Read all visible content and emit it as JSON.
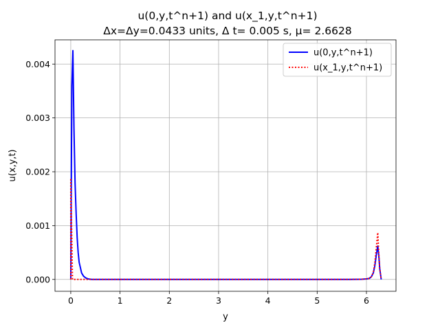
{
  "chart_data": {
    "type": "line",
    "title": "u(0,y,t^n+1) and u(x_1,y,t^n+1)",
    "subtitle": "Δx=Δy=0.0433 units, Δ t= 0.005 s, μ= 2.6628",
    "xlabel": "y",
    "ylabel": "u(x,y,t)",
    "xlim": [
      -0.32,
      6.6
    ],
    "ylim": [
      -0.00022,
      0.00445
    ],
    "xticks": [
      0,
      1,
      2,
      3,
      4,
      5,
      6
    ],
    "yticks": [
      0.0,
      0.001,
      0.002,
      0.003,
      0.004
    ],
    "ytick_labels": [
      "0.000",
      "0.001",
      "0.002",
      "0.003",
      "0.004"
    ],
    "grid": true,
    "legend_position": "top-right",
    "series": [
      {
        "name": "u(0,y,t^n+1)",
        "color": "#0000ff",
        "style": "solid",
        "x": [
          0.0,
          0.022,
          0.043,
          0.065,
          0.087,
          0.11,
          0.13,
          0.15,
          0.17,
          0.2,
          0.22,
          0.26,
          0.3,
          0.35,
          0.43,
          0.5,
          1.0,
          2.0,
          3.0,
          4.0,
          5.0,
          5.6,
          5.9,
          6.0,
          6.06,
          6.1,
          6.14,
          6.17,
          6.2,
          6.23,
          6.25,
          6.27,
          6.3
        ],
        "y": [
          0.0,
          0.0036,
          0.00425,
          0.0028,
          0.0018,
          0.0012,
          0.00078,
          0.0005,
          0.00032,
          0.0002,
          0.00012,
          6e-05,
          3e-05,
          1e-05,
          0.0,
          0.0,
          0.0,
          0.0,
          0.0,
          0.0,
          0.0,
          0.0,
          3e-06,
          1e-05,
          2e-05,
          5e-05,
          0.00012,
          0.00025,
          0.00045,
          0.00062,
          0.00045,
          0.0002,
          0.0
        ]
      },
      {
        "name": "u(x_1,y,t^n+1)",
        "color": "#ff0000",
        "style": "dotted",
        "x": [
          0.0,
          0.0,
          0.035,
          0.08,
          0.5,
          1.0,
          2.0,
          3.0,
          4.0,
          5.0,
          5.6,
          5.9,
          6.0,
          6.06,
          6.1,
          6.14,
          6.17,
          6.2,
          6.23,
          6.25,
          6.27,
          6.3
        ],
        "y": [
          0.0,
          0.00188,
          0.0,
          0.0,
          0.0,
          0.0,
          0.0,
          0.0,
          0.0,
          0.0,
          0.0,
          3e-06,
          1e-05,
          2e-05,
          5e-05,
          0.00013,
          0.0003,
          0.00058,
          0.00087,
          0.0005,
          0.0002,
          0.0
        ]
      }
    ]
  }
}
